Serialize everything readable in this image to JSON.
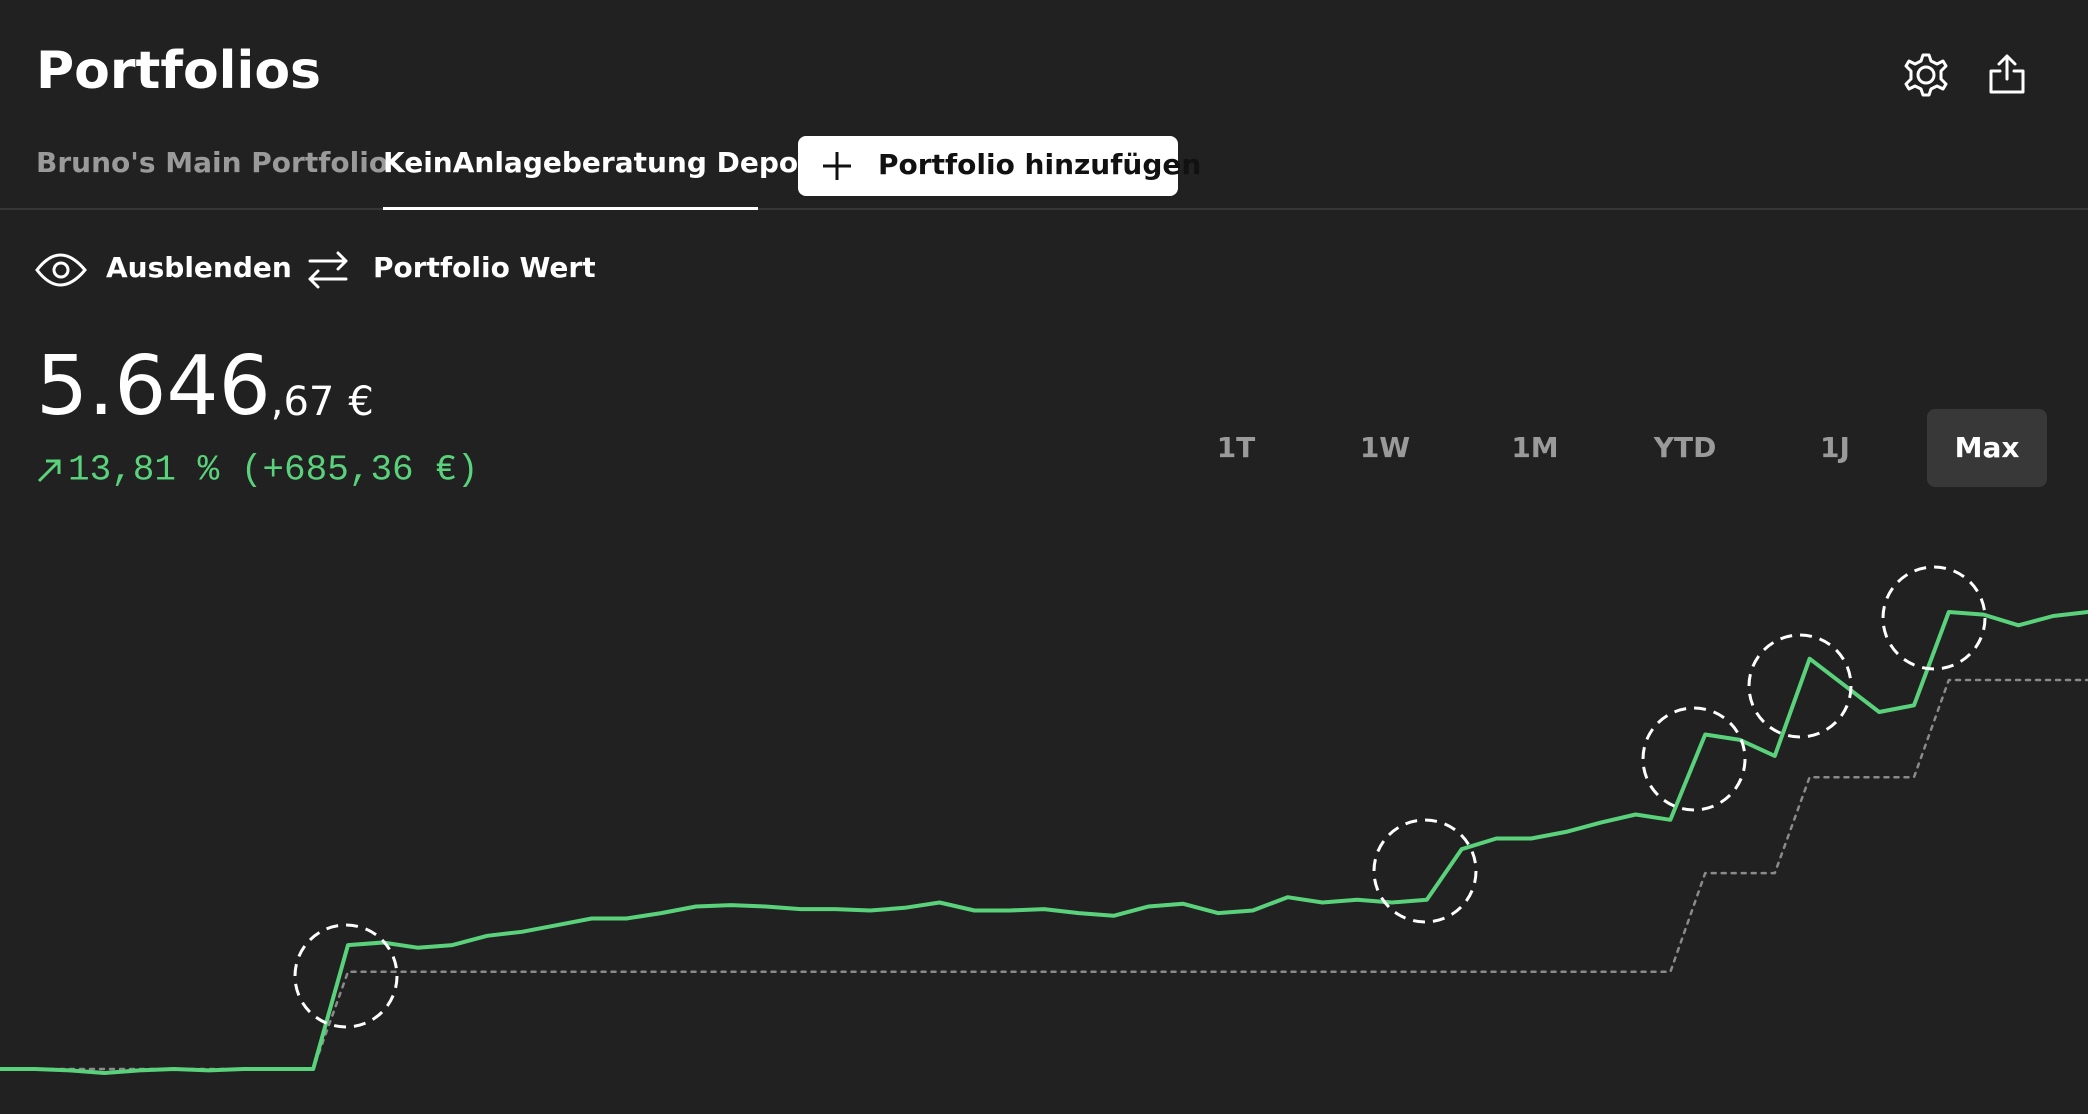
{
  "header": {
    "title": "Portfolios"
  },
  "tabs": [
    "Bruno's Main Portfolio",
    "KeinAnlageberatung Depot"
  ],
  "add_button": "Portfolio hinzufügen",
  "toggles": [
    "Ausblenden",
    "Portfolio Wert"
  ],
  "value": {
    "main": "5.646",
    "decimals": ",67",
    "currency": "€",
    "change": "13,81 % (+685,36 €)"
  },
  "ranges": [
    "1T",
    "1W",
    "1M",
    "YTD",
    "1J",
    "Max"
  ],
  "chart_data": {
    "type": "line",
    "series": [
      {
        "color": "#5ad27c",
        "line_style": "solid",
        "values": [
          948,
          948,
          934,
          907,
          934,
          948,
          934,
          948,
          948,
          948,
          2222,
          2249,
          2195,
          2222,
          2318,
          2359,
          2427,
          2496,
          2496,
          2551,
          2619,
          2633,
          2619,
          2592,
          2592,
          2578,
          2606,
          2660,
          2578,
          2578,
          2592,
          2551,
          2523,
          2619,
          2647,
          2551,
          2578,
          2715,
          2660,
          2688,
          2660,
          2688,
          3208,
          3318,
          3318,
          3386,
          3482,
          3565,
          3510,
          4387,
          4332,
          4167,
          5167,
          4893,
          4619,
          4688,
          5647,
          5620,
          5510,
          5606,
          5647
        ]
      },
      {
        "color": "#8a8a8a",
        "line_style": "dotted",
        "values": [
          948,
          948,
          948,
          948,
          948,
          948,
          948,
          948,
          948,
          948,
          1948,
          1948,
          1948,
          1948,
          1948,
          1948,
          1948,
          1948,
          1948,
          1948,
          1948,
          1948,
          1948,
          1948,
          1948,
          1948,
          1948,
          1948,
          1948,
          1948,
          1948,
          1948,
          1948,
          1948,
          1948,
          1948,
          1948,
          1948,
          1948,
          1948,
          1948,
          1948,
          1948,
          1948,
          1948,
          1948,
          1948,
          1948,
          1948,
          2962,
          2962,
          2962,
          3948,
          3948,
          3948,
          3948,
          4948,
          4948,
          4948,
          4948,
          4948
        ]
      }
    ]
  }
}
